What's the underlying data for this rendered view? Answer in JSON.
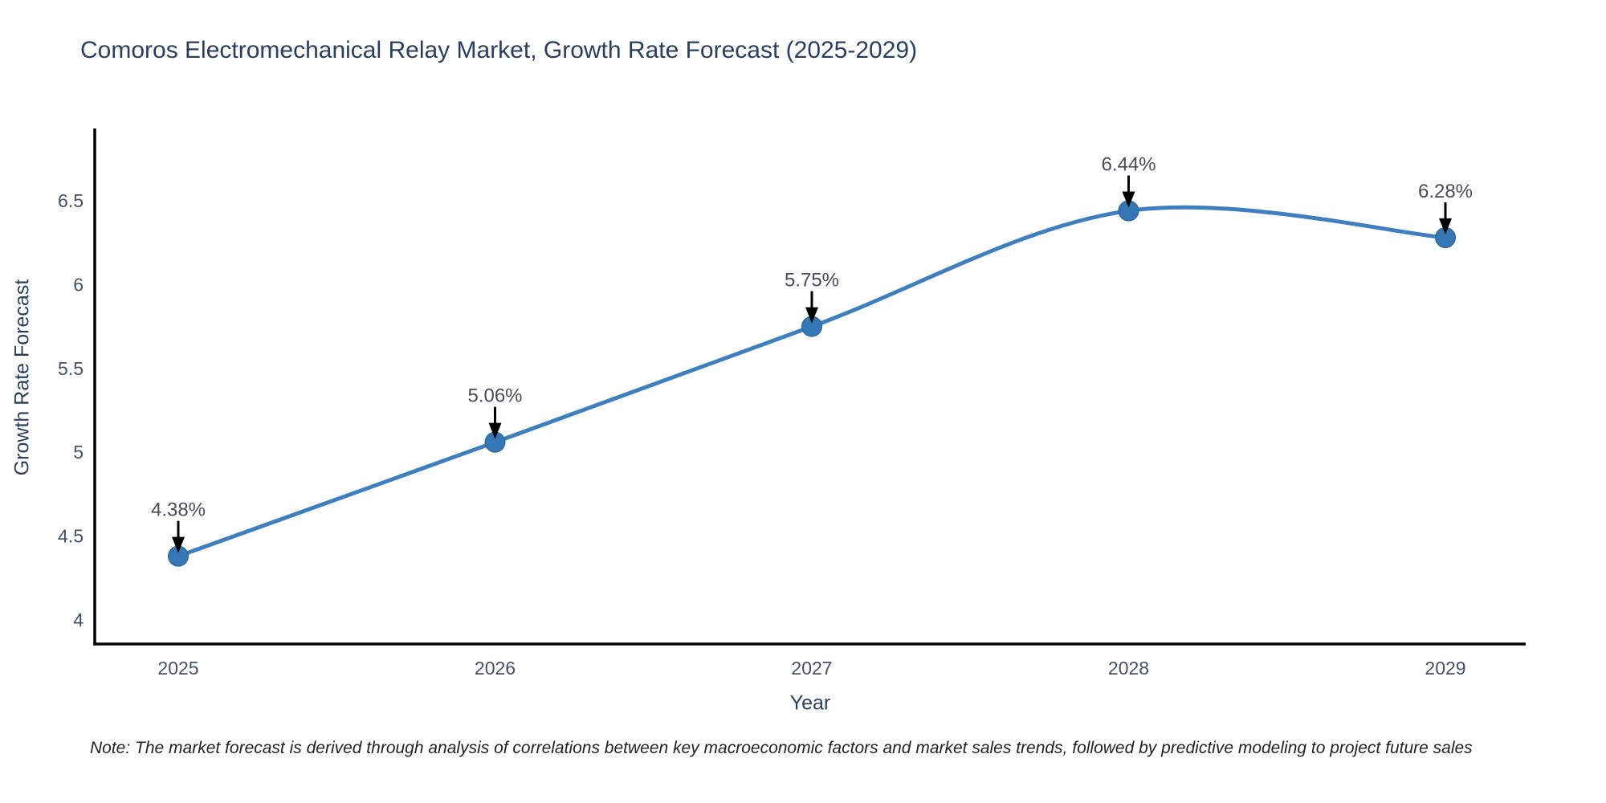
{
  "chart_data": {
    "type": "line",
    "title": "Comoros Electromechanical Relay Market, Growth Rate Forecast (2025-2029)",
    "categories": [
      "2025",
      "2026",
      "2027",
      "2028",
      "2029"
    ],
    "values": [
      4.38,
      5.06,
      5.75,
      6.44,
      6.28
    ],
    "point_labels": [
      "4.38%",
      "5.06%",
      "5.75%",
      "6.44%",
      "6.28%"
    ],
    "xlabel": "Year",
    "ylabel": "Growth Rate Forecast",
    "ytick_labels": [
      "4",
      "4.5",
      "5",
      "5.5",
      "6",
      "6.5"
    ],
    "ytick_values": [
      4,
      4.5,
      5,
      5.5,
      6,
      6.5
    ],
    "ylim": [
      3.85,
      6.93
    ],
    "line_shape": "spline",
    "grid": false,
    "legend_position": "none",
    "colors": {
      "line": "#3f7fbe",
      "marker": "#3577b4",
      "marker_edge": "#2a5d8f",
      "annotation_text": "#474d57",
      "annotation_arrow": "#000000",
      "axis_line": "#000000",
      "tick_label": "#44506a",
      "axis_title": "#2a3f5f",
      "chart_title": "#2a3f5f",
      "note_text": "#222222"
    }
  },
  "footer": {
    "note": "Note: The market forecast is derived through analysis of correlations between key macroeconomic factors and market sales trends, followed by predictive modeling to project future sales"
  }
}
